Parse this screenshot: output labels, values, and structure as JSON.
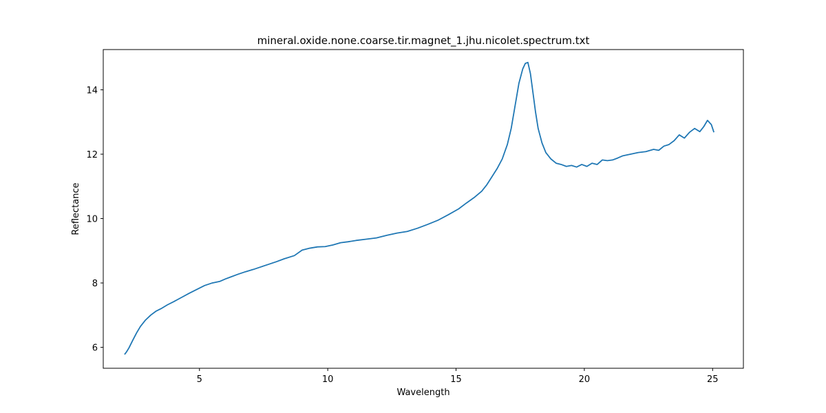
{
  "chart_data": {
    "type": "line",
    "title": "mineral.oxide.none.coarse.tir.magnet_1.jhu.nicolet.spectrum.txt",
    "xlabel": "Wavelength",
    "ylabel": "Reflectance",
    "xlim": [
      1.25,
      26.2
    ],
    "ylim": [
      5.35,
      15.25
    ],
    "xticks": [
      5,
      10,
      15,
      20,
      25
    ],
    "yticks": [
      6,
      8,
      10,
      12,
      14
    ],
    "xtick_labels": [
      "5",
      "10",
      "15",
      "20",
      "25"
    ],
    "ytick_labels": [
      "6",
      "8",
      "10",
      "12",
      "14"
    ],
    "grid": false,
    "legend": "none",
    "series": [
      {
        "color": "#1f77b4",
        "x": [
          2.08,
          2.15,
          2.25,
          2.4,
          2.55,
          2.7,
          2.9,
          3.1,
          3.3,
          3.5,
          3.75,
          4.0,
          4.3,
          4.6,
          4.9,
          5.2,
          5.5,
          5.8,
          6.0,
          6.2,
          6.5,
          6.8,
          7.1,
          7.4,
          7.7,
          8.0,
          8.3,
          8.7,
          9.0,
          9.3,
          9.6,
          9.9,
          10.2,
          10.5,
          10.8,
          11.1,
          11.5,
          11.9,
          12.3,
          12.7,
          13.1,
          13.5,
          13.9,
          14.3,
          14.7,
          15.1,
          15.4,
          15.7,
          16.0,
          16.2,
          16.4,
          16.6,
          16.8,
          17.0,
          17.15,
          17.3,
          17.45,
          17.6,
          17.7,
          17.8,
          17.9,
          18.0,
          18.1,
          18.2,
          18.35,
          18.5,
          18.7,
          18.9,
          19.1,
          19.3,
          19.5,
          19.7,
          19.9,
          20.1,
          20.3,
          20.5,
          20.7,
          20.9,
          21.1,
          21.3,
          21.5,
          21.8,
          22.1,
          22.4,
          22.7,
          22.9,
          23.1,
          23.3,
          23.5,
          23.7,
          23.9,
          24.1,
          24.3,
          24.5,
          24.65,
          24.8,
          24.95,
          25.05
        ],
        "y": [
          5.78,
          5.85,
          5.98,
          6.22,
          6.45,
          6.65,
          6.85,
          7.0,
          7.12,
          7.2,
          7.32,
          7.42,
          7.55,
          7.68,
          7.8,
          7.92,
          8.0,
          8.05,
          8.12,
          8.18,
          8.27,
          8.35,
          8.42,
          8.5,
          8.58,
          8.66,
          8.75,
          8.85,
          9.02,
          9.08,
          9.12,
          9.13,
          9.18,
          9.25,
          9.28,
          9.32,
          9.36,
          9.4,
          9.48,
          9.55,
          9.6,
          9.7,
          9.82,
          9.95,
          10.12,
          10.3,
          10.48,
          10.65,
          10.85,
          11.05,
          11.3,
          11.55,
          11.85,
          12.3,
          12.8,
          13.5,
          14.2,
          14.65,
          14.82,
          14.85,
          14.5,
          13.9,
          13.3,
          12.8,
          12.35,
          12.05,
          11.85,
          11.72,
          11.68,
          11.62,
          11.65,
          11.6,
          11.68,
          11.62,
          11.72,
          11.68,
          11.82,
          11.8,
          11.82,
          11.88,
          11.95,
          12.0,
          12.05,
          12.08,
          12.15,
          12.12,
          12.25,
          12.3,
          12.42,
          12.6,
          12.5,
          12.68,
          12.8,
          12.7,
          12.85,
          13.05,
          12.92,
          12.68
        ]
      }
    ]
  }
}
